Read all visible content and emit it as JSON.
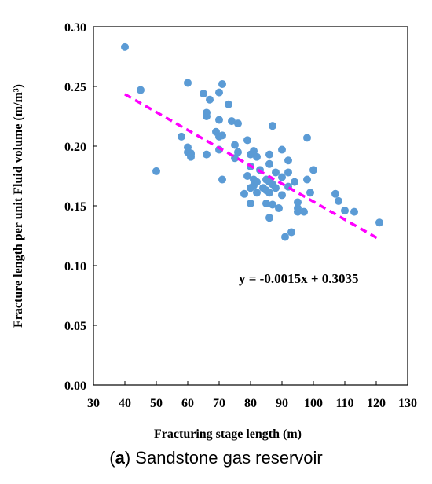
{
  "caption": {
    "letter": "a",
    "text": "Sandstone gas reservoir"
  },
  "chart_data": {
    "type": "scatter",
    "xlabel": "Fracturing stage length (m)",
    "ylabel": "Fracture length per unit Fluid volume (m/m³)",
    "xlim": [
      30,
      130
    ],
    "ylim": [
      0.0,
      0.3
    ],
    "xticks": [
      "30",
      "40",
      "50",
      "60",
      "70",
      "80",
      "90",
      "100",
      "110",
      "120",
      "130"
    ],
    "yticks": [
      "0.00",
      "0.05",
      "0.10",
      "0.15",
      "0.20",
      "0.25",
      "0.30"
    ],
    "grid": false,
    "marker_color": "#5b9bd5",
    "trendline": {
      "equation": "y = -0.0015x + 0.3035",
      "slope": -0.0015,
      "intercept": 0.3035,
      "x_range": [
        40,
        121
      ],
      "color": "#ff00ff",
      "style": "dashed"
    },
    "points": [
      [
        40,
        0.283
      ],
      [
        45,
        0.247
      ],
      [
        50,
        0.179
      ],
      [
        58,
        0.208
      ],
      [
        60,
        0.253
      ],
      [
        60,
        0.199
      ],
      [
        60,
        0.195
      ],
      [
        61,
        0.191
      ],
      [
        61,
        0.194
      ],
      [
        61,
        0.193
      ],
      [
        65,
        0.244
      ],
      [
        66,
        0.225
      ],
      [
        66,
        0.228
      ],
      [
        66,
        0.193
      ],
      [
        67,
        0.239
      ],
      [
        69,
        0.212
      ],
      [
        70,
        0.245
      ],
      [
        70,
        0.222
      ],
      [
        70,
        0.208
      ],
      [
        70,
        0.197
      ],
      [
        71,
        0.252
      ],
      [
        71,
        0.209
      ],
      [
        71,
        0.172
      ],
      [
        73,
        0.235
      ],
      [
        74,
        0.221
      ],
      [
        75,
        0.201
      ],
      [
        75,
        0.19
      ],
      [
        76,
        0.219
      ],
      [
        76,
        0.195
      ],
      [
        78,
        0.16
      ],
      [
        79,
        0.205
      ],
      [
        79,
        0.175
      ],
      [
        80,
        0.193
      ],
      [
        80,
        0.183
      ],
      [
        80,
        0.165
      ],
      [
        80,
        0.152
      ],
      [
        81,
        0.196
      ],
      [
        81,
        0.172
      ],
      [
        81,
        0.167
      ],
      [
        82,
        0.191
      ],
      [
        82,
        0.17
      ],
      [
        82,
        0.161
      ],
      [
        83,
        0.18
      ],
      [
        84,
        0.165
      ],
      [
        85,
        0.172
      ],
      [
        85,
        0.163
      ],
      [
        85,
        0.152
      ],
      [
        86,
        0.193
      ],
      [
        86,
        0.185
      ],
      [
        86,
        0.17
      ],
      [
        86,
        0.161
      ],
      [
        86,
        0.14
      ],
      [
        87,
        0.217
      ],
      [
        87,
        0.168
      ],
      [
        87,
        0.151
      ],
      [
        88,
        0.178
      ],
      [
        88,
        0.165
      ],
      [
        89,
        0.148
      ],
      [
        90,
        0.197
      ],
      [
        90,
        0.174
      ],
      [
        90,
        0.159
      ],
      [
        91,
        0.124
      ],
      [
        92,
        0.188
      ],
      [
        92,
        0.178
      ],
      [
        92,
        0.166
      ],
      [
        93,
        0.128
      ],
      [
        94,
        0.17
      ],
      [
        95,
        0.153
      ],
      [
        95,
        0.148
      ],
      [
        95,
        0.145
      ],
      [
        97,
        0.145
      ],
      [
        98,
        0.207
      ],
      [
        98,
        0.172
      ],
      [
        99,
        0.161
      ],
      [
        100,
        0.18
      ],
      [
        107,
        0.16
      ],
      [
        108,
        0.154
      ],
      [
        110,
        0.146
      ],
      [
        113,
        0.145
      ],
      [
        121,
        0.136
      ]
    ]
  }
}
